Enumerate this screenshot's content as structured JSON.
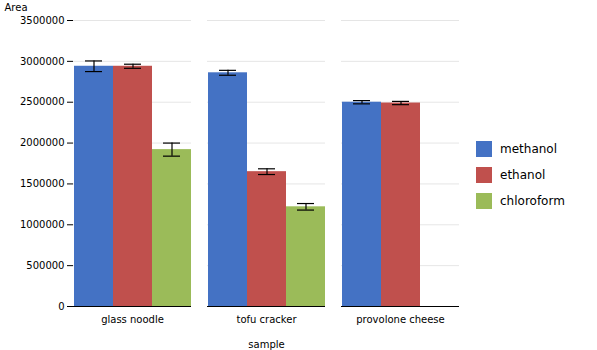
{
  "chart_data": {
    "type": "bar",
    "categories": [
      "glass noodle",
      "tofu cracker",
      "provolone cheese"
    ],
    "series": [
      {
        "name": "methanol",
        "color": "#4472C4",
        "values": [
          2940000,
          2860000,
          2500000
        ],
        "errors": [
          65000,
          30000,
          20000
        ]
      },
      {
        "name": "ethanol",
        "color": "#C0504D",
        "values": [
          2940000,
          1650000,
          2490000
        ],
        "errors": [
          25000,
          35000,
          20000
        ]
      },
      {
        "name": "chloroform",
        "color": "#9BBB59",
        "values": [
          1920000,
          1220000,
          null
        ],
        "errors": [
          80000,
          40000,
          null
        ]
      }
    ],
    "xlabel": "sample",
    "ylabel": "Area",
    "ylim": [
      0,
      3500000
    ],
    "yticks": [
      0,
      500000,
      1000000,
      1500000,
      2000000,
      2500000,
      3000000,
      3500000
    ],
    "grid": true,
    "legend": "right"
  }
}
